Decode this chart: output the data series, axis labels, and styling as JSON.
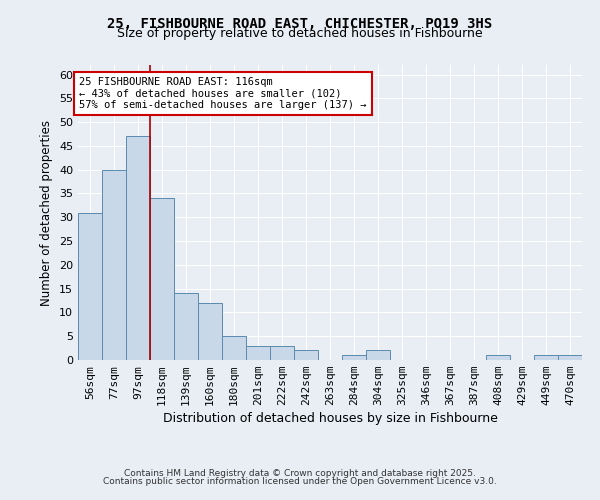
{
  "title1": "25, FISHBOURNE ROAD EAST, CHICHESTER, PO19 3HS",
  "title2": "Size of property relative to detached houses in Fishbourne",
  "xlabel": "Distribution of detached houses by size in Fishbourne",
  "ylabel": "Number of detached properties",
  "bin_labels": [
    "56sqm",
    "77sqm",
    "97sqm",
    "118sqm",
    "139sqm",
    "160sqm",
    "180sqm",
    "201sqm",
    "222sqm",
    "242sqm",
    "263sqm",
    "284sqm",
    "304sqm",
    "325sqm",
    "346sqm",
    "367sqm",
    "387sqm",
    "408sqm",
    "429sqm",
    "449sqm",
    "470sqm"
  ],
  "bar_values": [
    31,
    40,
    47,
    34,
    14,
    12,
    5,
    3,
    3,
    2,
    0,
    1,
    2,
    0,
    0,
    0,
    0,
    1,
    0,
    1,
    1
  ],
  "bar_color": "#c8d8e8",
  "bar_edge_color": "#5a8ab0",
  "bg_color": "#e8eef4",
  "grid_color": "#ffffff",
  "annotation_line1": "25 FISHBOURNE ROAD EAST: 116sqm",
  "annotation_line2": "← 43% of detached houses are smaller (102)",
  "annotation_line3": "57% of semi-detached houses are larger (137) →",
  "vline_x": 2.5,
  "vline_color": "#aa0000",
  "ylim": [
    0,
    62
  ],
  "yticks": [
    0,
    5,
    10,
    15,
    20,
    25,
    30,
    35,
    40,
    45,
    50,
    55,
    60
  ],
  "footer1": "Contains HM Land Registry data © Crown copyright and database right 2025.",
  "footer2": "Contains public sector information licensed under the Open Government Licence v3.0."
}
